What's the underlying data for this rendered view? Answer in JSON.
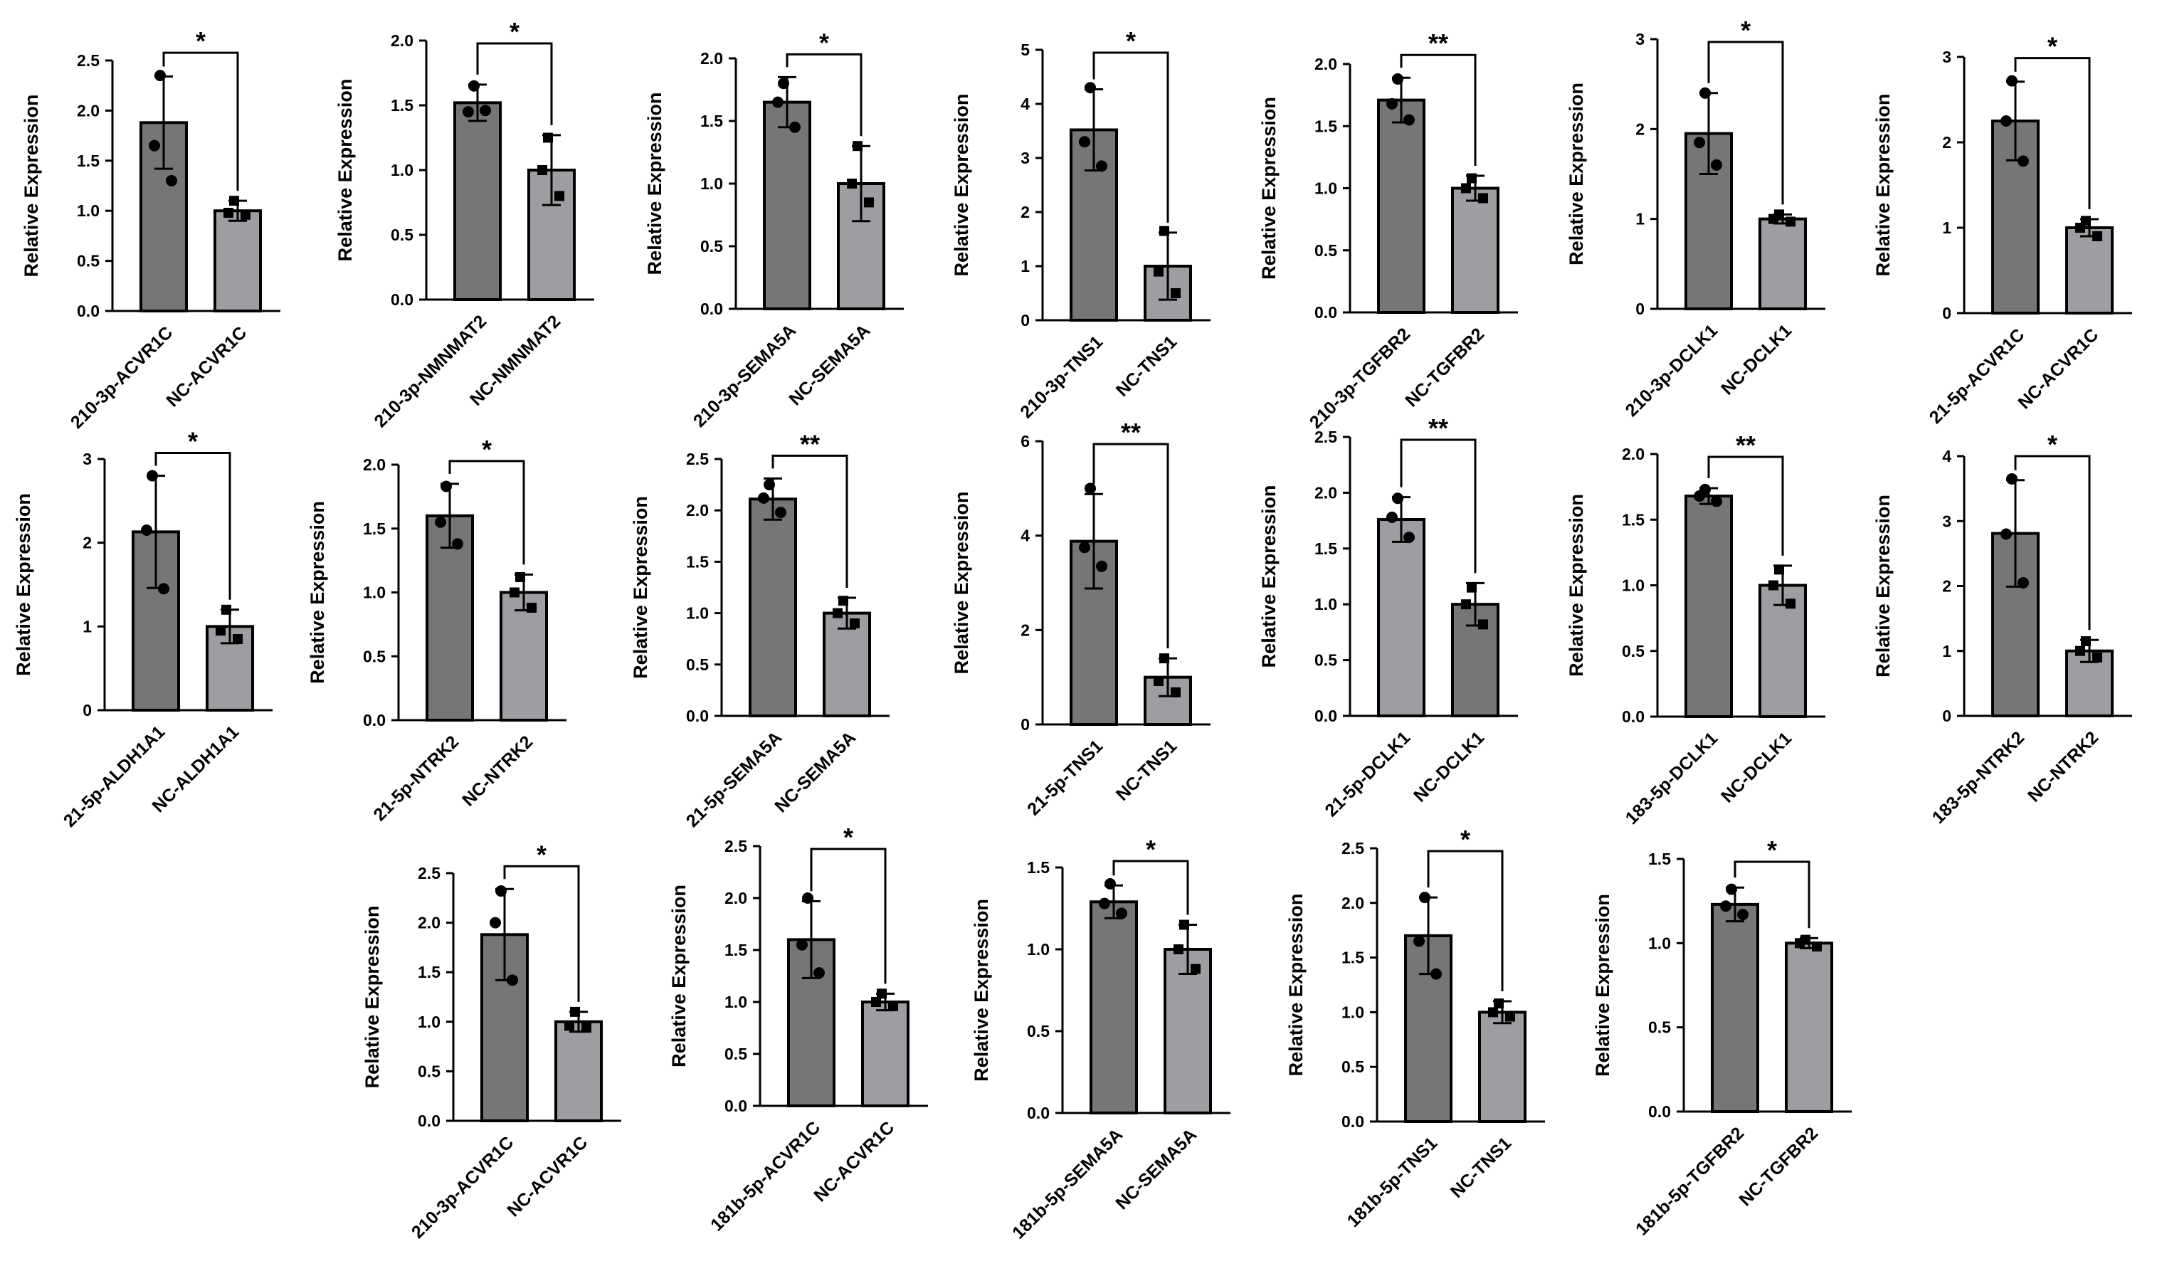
{
  "y_label": "Relative Expression",
  "colors": {
    "treatment": "#767676",
    "control": "#9e9ea2",
    "outline": "#000000",
    "point": "#000000"
  },
  "chart_data": [
    {
      "type": "bar",
      "categories": [
        "210-3p-ACVR1C",
        "NC-ACVR1C"
      ],
      "values": [
        1.88,
        1.0
      ],
      "errors": [
        0.46,
        0.1
      ],
      "points": [
        [
          2.35,
          1.65,
          1.3
        ],
        [
          1.1,
          0.98,
          0.96
        ]
      ],
      "ylim": [
        0,
        2.5
      ],
      "ticks": [
        "0.0",
        "0.5",
        "1.0",
        "1.5",
        "2.0",
        "2.5"
      ],
      "significance": "*",
      "ylabel": "Relative Expression",
      "bar_colors": [
        "treatment",
        "control"
      ]
    },
    {
      "type": "bar",
      "categories": [
        "210-3p-NMNMAT2",
        "NC-NMNMAT2"
      ],
      "values": [
        1.52,
        1.0
      ],
      "errors": [
        0.14,
        0.27
      ],
      "points": [
        [
          1.65,
          1.45,
          1.46
        ],
        [
          1.25,
          1.0,
          0.8
        ]
      ],
      "ylim": [
        0,
        2.0
      ],
      "ticks": [
        "0.0",
        "0.5",
        "1.0",
        "1.5",
        "2.0"
      ],
      "significance": "*",
      "ylabel": "Relative Expression",
      "bar_colors": [
        "treatment",
        "control"
      ]
    },
    {
      "type": "bar",
      "categories": [
        "210-3p-SEMA5A",
        "NC-SEMA5A"
      ],
      "values": [
        1.65,
        1.0
      ],
      "errors": [
        0.2,
        0.3
      ],
      "points": [
        [
          1.8,
          1.65,
          1.45
        ],
        [
          1.3,
          1.0,
          0.85
        ]
      ],
      "ylim": [
        0,
        2.0
      ],
      "ticks": [
        "0.0",
        "0.5",
        "1.0",
        "1.5",
        "2.0"
      ],
      "significance": "*",
      "ylabel": "Relative Expression",
      "bar_colors": [
        "treatment",
        "control"
      ]
    },
    {
      "type": "bar",
      "categories": [
        "210-3p-TNS1",
        "NC-TNS1"
      ],
      "values": [
        3.52,
        1.0
      ],
      "errors": [
        0.75,
        0.62
      ],
      "points": [
        [
          4.3,
          3.3,
          2.85
        ],
        [
          1.65,
          0.9,
          0.5
        ]
      ],
      "ylim": [
        0,
        5
      ],
      "ticks": [
        "0",
        "1",
        "2",
        "3",
        "4",
        "5"
      ],
      "significance": "*",
      "ylabel": "Relative Expression",
      "bar_colors": [
        "treatment",
        "control"
      ]
    },
    {
      "type": "bar",
      "categories": [
        "210-3p-TGFBR2",
        "NC-TGFBR2"
      ],
      "values": [
        1.71,
        1.0
      ],
      "errors": [
        0.18,
        0.1
      ],
      "points": [
        [
          1.88,
          1.68,
          1.55
        ],
        [
          1.08,
          1.0,
          0.92
        ]
      ],
      "ylim": [
        0,
        2.0
      ],
      "ticks": [
        "0.0",
        "0.5",
        "1.0",
        "1.5",
        "2.0"
      ],
      "significance": "**",
      "ylabel": "Relative Expression",
      "bar_colors": [
        "treatment",
        "control"
      ]
    },
    {
      "type": "bar",
      "categories": [
        "210-3p-DCLK1",
        "NC-DCLK1"
      ],
      "values": [
        1.95,
        1.0
      ],
      "errors": [
        0.45,
        0.05
      ],
      "points": [
        [
          2.4,
          1.85,
          1.6
        ],
        [
          1.05,
          1.0,
          0.97
        ]
      ],
      "ylim": [
        0,
        3
      ],
      "ticks": [
        "0",
        "1",
        "2",
        "3"
      ],
      "significance": "*",
      "ylabel": "Relative Expression",
      "bar_colors": [
        "treatment",
        "control"
      ]
    },
    {
      "type": "bar",
      "categories": [
        "21-5p-ACVR1C",
        "NC-ACVR1C"
      ],
      "values": [
        2.25,
        1.0
      ],
      "errors": [
        0.46,
        0.1
      ],
      "points": [
        [
          2.72,
          2.25,
          1.78
        ],
        [
          1.08,
          1.0,
          0.9
        ]
      ],
      "ylim": [
        0,
        3
      ],
      "ticks": [
        "0",
        "1",
        "2",
        "3"
      ],
      "significance": "*",
      "ylabel": "Relative Expression",
      "bar_colors": [
        "treatment",
        "control"
      ]
    },
    {
      "type": "bar",
      "categories": [
        "21-5p-ALDH1A1",
        "NC-ALDH1A1"
      ],
      "values": [
        2.13,
        1.0
      ],
      "errors": [
        0.67,
        0.2
      ],
      "points": [
        [
          2.8,
          2.15,
          1.45
        ],
        [
          1.2,
          0.95,
          0.85
        ]
      ],
      "ylim": [
        0,
        3
      ],
      "ticks": [
        "0",
        "1",
        "2",
        "3"
      ],
      "significance": "*",
      "ylabel": "Relative Expression",
      "bar_colors": [
        "treatment",
        "control"
      ]
    },
    {
      "type": "bar",
      "categories": [
        "21-5p-NTRK2",
        "NC-NTRK2"
      ],
      "values": [
        1.6,
        1.0
      ],
      "errors": [
        0.25,
        0.14
      ],
      "points": [
        [
          1.83,
          1.55,
          1.38
        ],
        [
          1.12,
          1.0,
          0.88
        ]
      ],
      "ylim": [
        0,
        2.0
      ],
      "ticks": [
        "0.0",
        "0.5",
        "1.0",
        "1.5",
        "2.0"
      ],
      "significance": "*",
      "ylabel": "Relative Expression",
      "bar_colors": [
        "treatment",
        "control"
      ]
    },
    {
      "type": "bar",
      "categories": [
        "21-5p-SEMA5A",
        "NC-SEMA5A"
      ],
      "values": [
        2.11,
        1.0
      ],
      "errors": [
        0.2,
        0.15
      ],
      "points": [
        [
          2.25,
          2.12,
          1.98
        ],
        [
          1.12,
          1.0,
          0.9
        ]
      ],
      "ylim": [
        0,
        2.5
      ],
      "ticks": [
        "0.0",
        "0.5",
        "1.0",
        "1.5",
        "2.0",
        "2.5"
      ],
      "significance": "**",
      "ylabel": "Relative Expression",
      "bar_colors": [
        "treatment",
        "control"
      ]
    },
    {
      "type": "bar",
      "categories": [
        "21-5p-TNS1",
        "NC-TNS1"
      ],
      "values": [
        3.88,
        1.0
      ],
      "errors": [
        1.0,
        0.4
      ],
      "points": [
        [
          5.0,
          3.75,
          3.35
        ],
        [
          1.4,
          0.92,
          0.68
        ]
      ],
      "ylim": [
        0,
        6
      ],
      "ticks": [
        "0",
        "2",
        "4",
        "6"
      ],
      "significance": "**",
      "ylabel": "Relative Expression",
      "bar_colors": [
        "treatment",
        "control"
      ]
    },
    {
      "type": "bar",
      "categories": [
        "21-5p-DCLK1",
        "NC-DCLK1"
      ],
      "values": [
        1.76,
        1.0
      ],
      "errors": [
        0.2,
        0.19
      ],
      "points": [
        [
          1.95,
          1.78,
          1.6
        ],
        [
          1.15,
          1.0,
          0.82
        ]
      ],
      "ylim": [
        0,
        2.5
      ],
      "ticks": [
        "0.0",
        "0.5",
        "1.0",
        "1.5",
        "2.0",
        "2.5"
      ],
      "significance": "**",
      "ylabel": "Relative Expression",
      "bar_colors": [
        "control",
        "treatment"
      ]
    },
    {
      "type": "bar",
      "categories": [
        "183-5p-DCLK1",
        "NC-DCLK1"
      ],
      "values": [
        1.68,
        1.0
      ],
      "errors": [
        0.06,
        0.15
      ],
      "points": [
        [
          1.73,
          1.68,
          1.64
        ],
        [
          1.12,
          1.0,
          0.86
        ]
      ],
      "ylim": [
        0,
        2.0
      ],
      "ticks": [
        "0.0",
        "0.5",
        "1.0",
        "1.5",
        "2.0"
      ],
      "significance": "**",
      "ylabel": "Relative Expression",
      "bar_colors": [
        "treatment",
        "control"
      ]
    },
    {
      "type": "bar",
      "categories": [
        "183-5p-NTRK2",
        "NC-NTRK2"
      ],
      "values": [
        2.81,
        1.0
      ],
      "errors": [
        0.82,
        0.17
      ],
      "points": [
        [
          3.65,
          2.8,
          2.05
        ],
        [
          1.15,
          1.0,
          0.9
        ]
      ],
      "ylim": [
        0,
        4
      ],
      "ticks": [
        "0",
        "1",
        "2",
        "3",
        "4"
      ],
      "significance": "*",
      "ylabel": "Relative Expression",
      "bar_colors": [
        "treatment",
        "control"
      ]
    },
    {
      "type": "bar",
      "categories": [
        "210-3p-ACVR1C",
        "NC-ACVR1C"
      ],
      "values": [
        1.88,
        1.0
      ],
      "errors": [
        0.46,
        0.1
      ],
      "points": [
        [
          2.32,
          2.0,
          1.42
        ],
        [
          1.1,
          0.96,
          0.94
        ]
      ],
      "ylim": [
        0,
        2.5
      ],
      "ticks": [
        "0.0",
        "0.5",
        "1.0",
        "1.5",
        "2.0",
        "2.5"
      ],
      "significance": "*",
      "ylabel": "Relative Expression",
      "bar_colors": [
        "treatment",
        "control"
      ]
    },
    {
      "type": "bar",
      "categories": [
        "181b-5p-ACVR1C",
        "NC-ACVR1C"
      ],
      "values": [
        1.6,
        1.0
      ],
      "errors": [
        0.37,
        0.08
      ],
      "points": [
        [
          2.0,
          1.55,
          1.28
        ],
        [
          1.08,
          1.0,
          0.96
        ]
      ],
      "ylim": [
        0,
        2.5
      ],
      "ticks": [
        "0.0",
        "0.5",
        "1.0",
        "1.5",
        "2.0",
        "2.5"
      ],
      "significance": "*",
      "ylabel": "Relative Expression",
      "bar_colors": [
        "treatment",
        "control"
      ]
    },
    {
      "type": "bar",
      "categories": [
        "181b-5p-SEMA5A",
        "NC-SEMA5A"
      ],
      "values": [
        1.29,
        1.0
      ],
      "errors": [
        0.1,
        0.15
      ],
      "points": [
        [
          1.4,
          1.28,
          1.22
        ],
        [
          1.15,
          1.0,
          0.88
        ]
      ],
      "ylim": [
        0,
        1.5
      ],
      "ticks": [
        "0.0",
        "0.5",
        "1.0",
        "1.5"
      ],
      "significance": "*",
      "ylabel": "Relative Expression",
      "bar_colors": [
        "treatment",
        "control"
      ]
    },
    {
      "type": "bar",
      "categories": [
        "181b-5p-TNS1",
        "NC-TNS1"
      ],
      "values": [
        1.7,
        1.0
      ],
      "errors": [
        0.35,
        0.1
      ],
      "points": [
        [
          2.05,
          1.65,
          1.35
        ],
        [
          1.08,
          1.0,
          0.96
        ]
      ],
      "ylim": [
        0,
        2.5
      ],
      "ticks": [
        "0.0",
        "0.5",
        "1.0",
        "1.5",
        "2.0",
        "2.5"
      ],
      "significance": "*",
      "ylabel": "Relative Expression",
      "bar_colors": [
        "treatment",
        "control"
      ]
    },
    {
      "type": "bar",
      "categories": [
        "181b-5p-TGFBR2",
        "NC-TGFBR2"
      ],
      "values": [
        1.23,
        1.0
      ],
      "errors": [
        0.1,
        0.03
      ],
      "points": [
        [
          1.32,
          1.22,
          1.17
        ],
        [
          1.02,
          1.0,
          0.98
        ]
      ],
      "ylim": [
        0,
        1.5
      ],
      "ticks": [
        "0.0",
        "0.5",
        "1.0",
        "1.5"
      ],
      "significance": "*",
      "ylabel": "Relative Expression",
      "bar_colors": [
        "treatment",
        "control"
      ]
    }
  ]
}
